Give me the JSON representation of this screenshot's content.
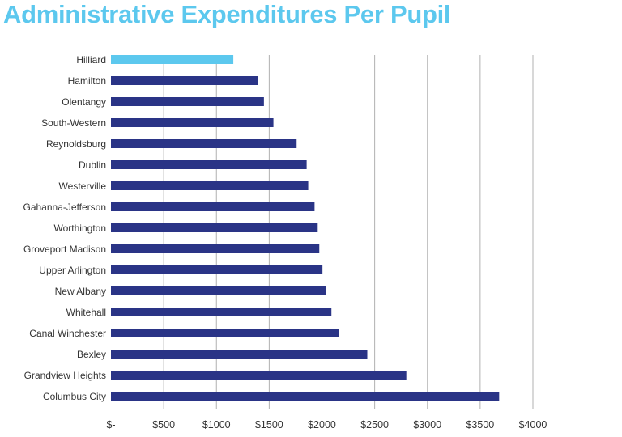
{
  "chart_data": {
    "type": "bar",
    "orientation": "horizontal",
    "title": "Administrative Expenditures Per Pupil",
    "xlabel": "",
    "ylabel": "",
    "xlim": [
      0,
      4000
    ],
    "grid": true,
    "ticks": [
      0,
      500,
      1000,
      1500,
      2000,
      2500,
      3000,
      3500,
      4000
    ],
    "tick_labels": [
      "$-",
      "$500",
      "$1000",
      "$1500",
      "$2000",
      "$2500",
      "$3000",
      "$3500",
      "$4000"
    ],
    "categories": [
      "Hilliard",
      "Hamilton",
      "Olentangy",
      "South-Western",
      "Reynoldsburg",
      "Dublin",
      "Westerville",
      "Gahanna-Jefferson",
      "Worthington",
      "Groveport Madison",
      "Upper Arlington",
      "New Albany",
      "Whitehall",
      "Canal Winchester",
      "Bexley",
      "Grandview Heights",
      "Columbus City"
    ],
    "values": [
      1160,
      1395,
      1450,
      1540,
      1760,
      1855,
      1870,
      1930,
      1960,
      1975,
      2005,
      2040,
      2090,
      2160,
      2430,
      2800,
      3680
    ],
    "colors": {
      "highlight": "#5cc8ee",
      "bar": "#2a3486",
      "grid": "#b0b0b0",
      "title": "#5cc8ee"
    },
    "highlight_index": 0
  }
}
